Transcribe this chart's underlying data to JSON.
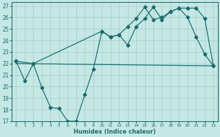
{
  "xlabel": "Humidex (Indice chaleur)",
  "bg_color": "#c5e8e5",
  "grid_color": "#a8d0cc",
  "line_color": "#1a6b6b",
  "xlim": [
    -0.5,
    23.5
  ],
  "ylim": [
    17,
    27.3
  ],
  "yticks": [
    17,
    18,
    19,
    20,
    21,
    22,
    23,
    24,
    25,
    26,
    27
  ],
  "xticks": [
    0,
    1,
    2,
    3,
    4,
    5,
    6,
    7,
    8,
    9,
    10,
    11,
    12,
    13,
    14,
    15,
    16,
    17,
    18,
    19,
    20,
    21,
    22,
    23
  ],
  "line1_x": [
    0,
    1,
    2,
    3,
    4,
    5,
    6,
    7,
    8,
    9,
    10,
    11,
    12,
    13,
    14,
    15,
    16,
    17,
    18,
    19,
    20,
    21,
    22,
    23
  ],
  "line1_y": [
    22.2,
    20.5,
    22.0,
    19.9,
    18.2,
    18.1,
    17.0,
    17.0,
    19.3,
    21.5,
    24.8,
    24.3,
    24.5,
    25.2,
    25.9,
    26.9,
    25.8,
    26.0,
    26.5,
    26.8,
    26.0,
    24.3,
    22.8,
    21.8
  ],
  "line2_x": [
    0,
    2,
    10,
    11,
    12,
    13,
    14,
    15,
    16,
    17,
    18,
    19,
    20,
    21,
    22,
    23
  ],
  "line2_y": [
    22.2,
    22.0,
    24.8,
    24.3,
    24.5,
    23.6,
    25.2,
    25.9,
    26.9,
    25.8,
    26.5,
    26.8,
    26.8,
    26.8,
    25.9,
    21.8
  ],
  "line3_x": [
    0,
    23
  ],
  "line3_y": [
    22.0,
    21.8
  ],
  "markersize": 2.5,
  "linewidth": 0.9
}
